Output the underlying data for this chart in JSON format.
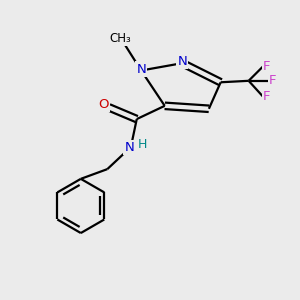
{
  "background_color": "#ebebeb",
  "atom_colors": {
    "N": "#0000cc",
    "O": "#cc0000",
    "F": "#cc44cc",
    "C": "#000000",
    "H": "#008888"
  },
  "bond_color": "#000000",
  "bond_width": 1.6
}
